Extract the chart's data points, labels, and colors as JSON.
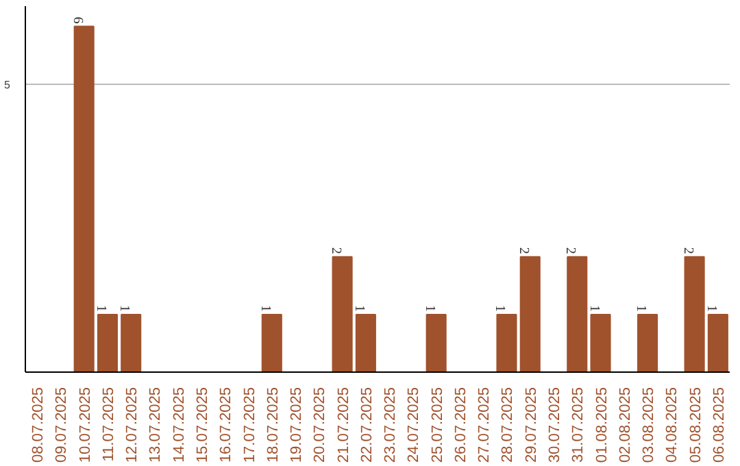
{
  "chart_data": {
    "type": "bar",
    "categories": [
      "08.07.2025",
      "09.07.2025",
      "10.07.2025",
      "11.07.2025",
      "12.07.2025",
      "13.07.2025",
      "14.07.2025",
      "15.07.2025",
      "16.07.2025",
      "17.07.2025",
      "18.07.2025",
      "19.07.2025",
      "20.07.2025",
      "21.07.2025",
      "22.07.2025",
      "23.07.2025",
      "24.07.2025",
      "25.07.2025",
      "26.07.2025",
      "27.07.2025",
      "28.07.2025",
      "29.07.2025",
      "30.07.2025",
      "31.07.2025",
      "01.08.2025",
      "02.08.2025",
      "03.08.2025",
      "04.08.2025",
      "05.08.2025",
      "06.08.2025"
    ],
    "values": [
      0,
      0,
      6,
      1,
      1,
      0,
      0,
      0,
      0,
      0,
      1,
      0,
      0,
      2,
      1,
      0,
      0,
      1,
      0,
      0,
      1,
      2,
      0,
      2,
      1,
      0,
      1,
      0,
      2,
      1
    ],
    "value_labels": [
      null,
      null,
      "6",
      "1",
      "1",
      null,
      null,
      null,
      null,
      null,
      "1",
      null,
      null,
      "2",
      "1",
      null,
      null,
      "1",
      null,
      null,
      "1",
      "2",
      null,
      "2",
      "1",
      null,
      "1",
      null,
      "2",
      "1"
    ],
    "color": "#a0522d",
    "ylim": [
      0,
      6.35
    ],
    "yticks": [
      5
    ],
    "grid": "y"
  }
}
